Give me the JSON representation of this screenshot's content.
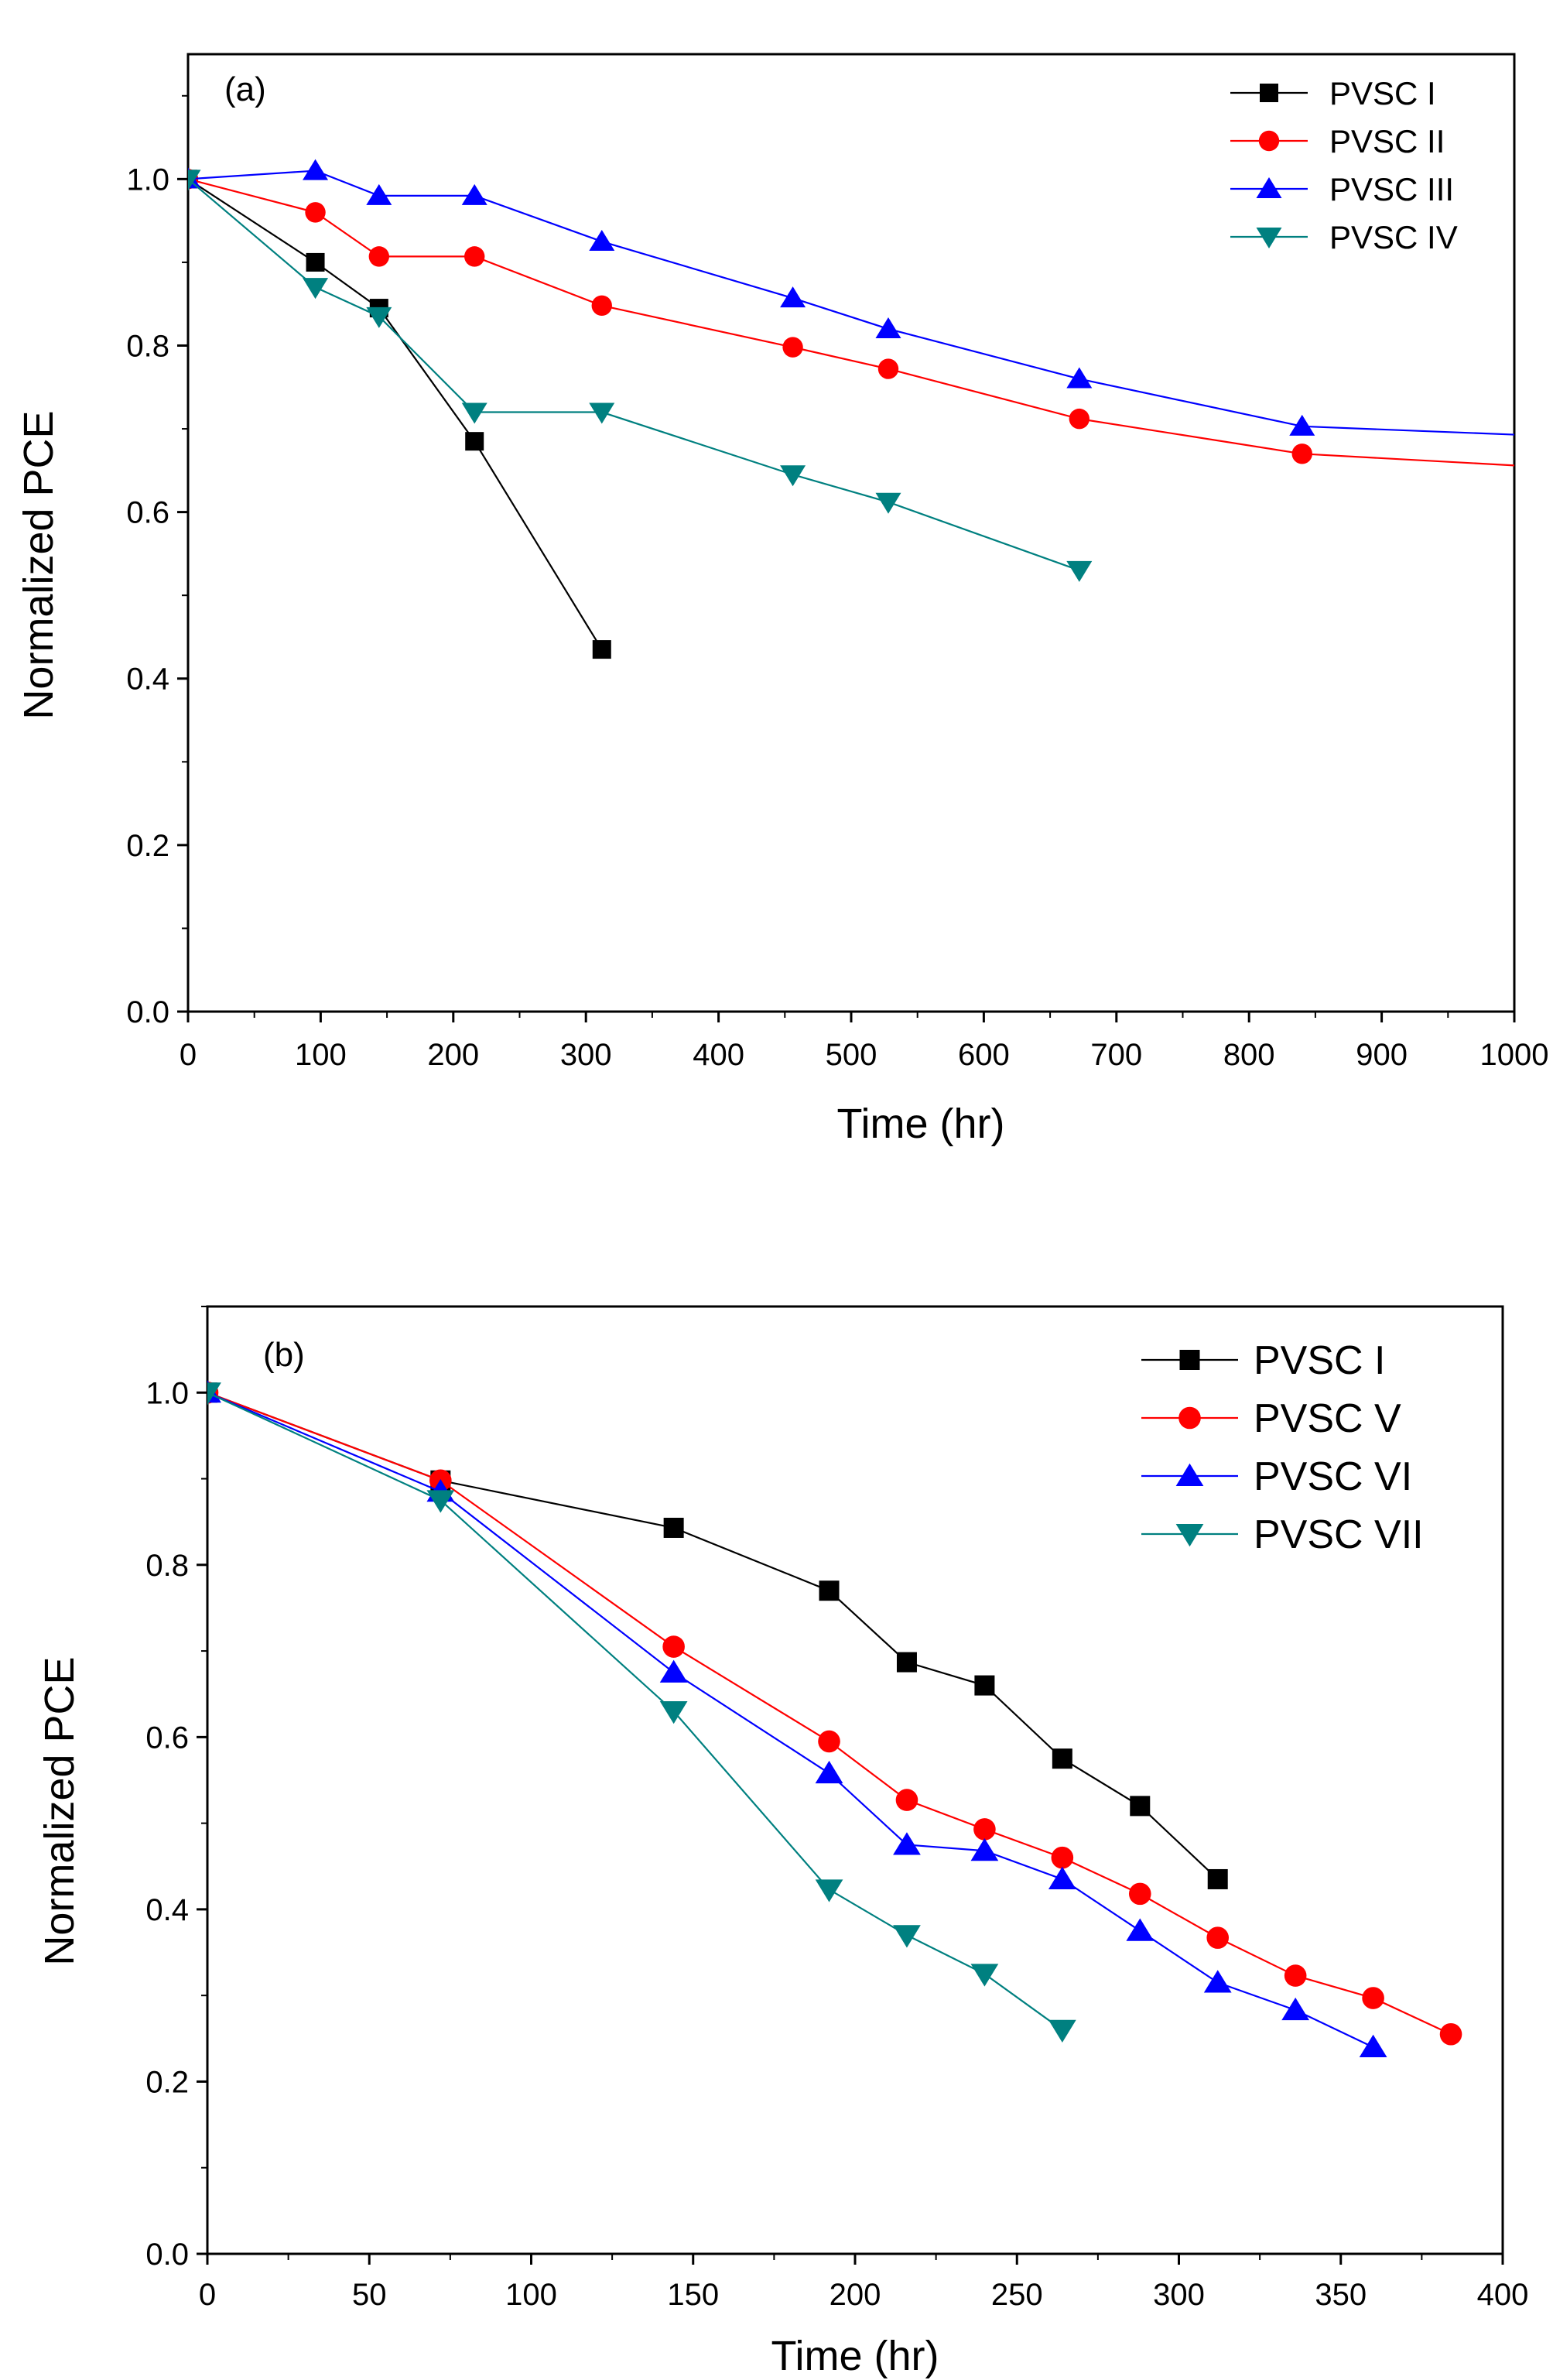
{
  "chart_data": [
    {
      "type": "line",
      "panel_label": "(a)",
      "xlabel": "Time (hr)",
      "ylabel": "Normalized PCE",
      "xlim": [
        0,
        1000
      ],
      "ylim": [
        0,
        1.15
      ],
      "xticks": [
        0,
        100,
        200,
        300,
        400,
        500,
        600,
        700,
        800,
        900,
        1000
      ],
      "xtick_labels": [
        "0",
        "100",
        "200",
        "300",
        "400",
        "500",
        "600",
        "700",
        "800",
        "900",
        "1000"
      ],
      "yticks": [
        0.0,
        0.2,
        0.4,
        0.6,
        0.8,
        1.0
      ],
      "ytick_labels": [
        "0.0",
        "0.2",
        "0.4",
        "0.6",
        "0.8",
        "1.0"
      ],
      "legend_position": "top-right",
      "series": [
        {
          "name": "PVSC I",
          "color": "#000000",
          "marker": "square",
          "x": [
            0,
            96,
            144,
            216,
            312
          ],
          "y": [
            1.0,
            0.9,
            0.845,
            0.685,
            0.435
          ]
        },
        {
          "name": "PVSC II",
          "color": "#ff0000",
          "marker": "circle",
          "x": [
            0,
            96,
            144,
            216,
            312,
            456,
            528,
            672,
            840,
            1000
          ],
          "y": [
            1.0,
            0.96,
            0.907,
            0.907,
            0.848,
            0.798,
            0.772,
            0.712,
            0.67,
            0.656
          ]
        },
        {
          "name": "PVSC III",
          "color": "#0000ff",
          "marker": "triangle-up",
          "x": [
            0,
            96,
            144,
            216,
            312,
            456,
            528,
            672,
            840,
            1000
          ],
          "y": [
            1.0,
            1.01,
            0.98,
            0.98,
            0.925,
            0.857,
            0.82,
            0.76,
            0.703,
            0.693
          ]
        },
        {
          "name": "PVSC IV",
          "color": "#008080",
          "marker": "triangle-down",
          "x": [
            0,
            96,
            144,
            216,
            312,
            456,
            528,
            672
          ],
          "y": [
            1.0,
            0.87,
            0.835,
            0.72,
            0.72,
            0.645,
            0.612,
            0.53
          ]
        }
      ]
    },
    {
      "type": "line",
      "panel_label": "(b)",
      "xlabel": "Time (hr)",
      "ylabel": "Normalized PCE",
      "xlim": [
        0,
        400
      ],
      "ylim": [
        0,
        1.1
      ],
      "xticks": [
        0,
        50,
        100,
        150,
        200,
        250,
        300,
        350,
        400
      ],
      "xtick_labels": [
        "0",
        "50",
        "100",
        "150",
        "200",
        "250",
        "300",
        "350",
        "400"
      ],
      "yticks": [
        0.0,
        0.2,
        0.4,
        0.6,
        0.8,
        1.0
      ],
      "ytick_labels": [
        "0.0",
        "0.2",
        "0.4",
        "0.6",
        "0.8",
        "1.0"
      ],
      "legend_position": "top-right",
      "series": [
        {
          "name": "PVSC I",
          "color": "#000000",
          "marker": "square",
          "x": [
            0,
            72,
            144,
            192,
            216,
            240,
            264,
            288,
            312
          ],
          "y": [
            1.0,
            0.898,
            0.843,
            0.77,
            0.687,
            0.66,
            0.575,
            0.52,
            0.435
          ]
        },
        {
          "name": "PVSC V",
          "color": "#ff0000",
          "marker": "circle",
          "x": [
            0,
            72,
            144,
            192,
            216,
            240,
            264,
            288,
            312,
            336,
            360,
            384
          ],
          "y": [
            1.0,
            0.898,
            0.705,
            0.595,
            0.527,
            0.493,
            0.46,
            0.418,
            0.367,
            0.323,
            0.297,
            0.255
          ]
        },
        {
          "name": "PVSC VI",
          "color": "#0000ff",
          "marker": "triangle-up",
          "x": [
            0,
            72,
            144,
            192,
            216,
            240,
            264,
            288,
            312,
            336,
            360
          ],
          "y": [
            1.0,
            0.885,
            0.675,
            0.558,
            0.475,
            0.468,
            0.435,
            0.375,
            0.315,
            0.283,
            0.24
          ]
        },
        {
          "name": "PVSC VII",
          "color": "#008080",
          "marker": "triangle-down",
          "x": [
            0,
            72,
            144,
            192,
            216,
            240,
            264
          ],
          "y": [
            1.0,
            0.875,
            0.63,
            0.423,
            0.37,
            0.325,
            0.26
          ]
        }
      ]
    }
  ]
}
